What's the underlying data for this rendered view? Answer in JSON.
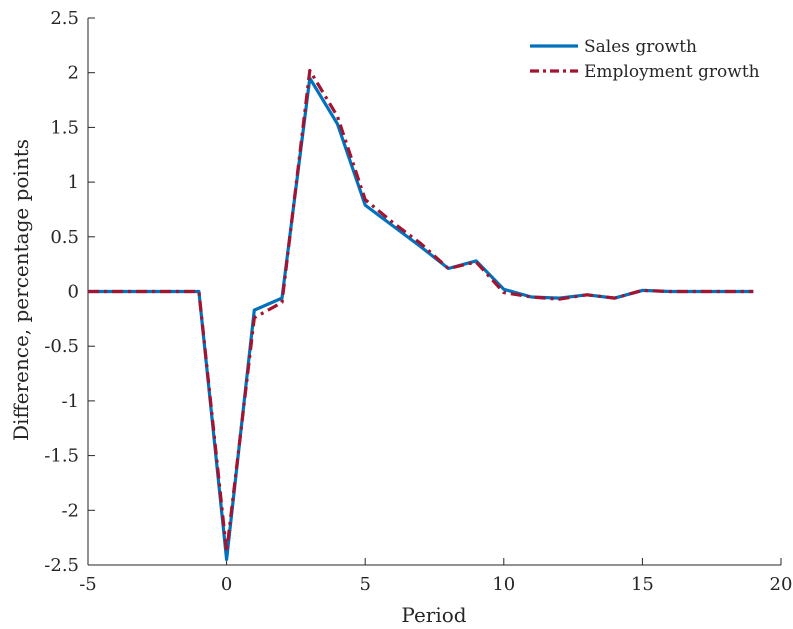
{
  "chart_data": {
    "type": "line",
    "title": "",
    "xlabel": "Period",
    "ylabel": "Difference, percentage points",
    "xlim": [
      -5,
      20
    ],
    "ylim": [
      -2.5,
      2.5
    ],
    "xticks": [
      -5,
      0,
      5,
      10,
      15,
      20
    ],
    "xtick_labels": [
      "-5",
      "0",
      "5",
      "10",
      "15",
      "20"
    ],
    "yticks": [
      2.5,
      2,
      1.5,
      1,
      0.5,
      0,
      -0.5,
      -1,
      -1.5,
      -2,
      -2.5
    ],
    "ytick_labels": [
      "2.5",
      "2",
      "1.5",
      "1",
      "0.5",
      "0",
      "-0.5",
      "-1",
      "-1.5",
      "-2",
      "-2.5"
    ],
    "grid": false,
    "legend_position": "top-right",
    "x": [
      -5,
      -4,
      -3,
      -2,
      -1,
      0,
      1,
      2,
      3,
      4,
      5,
      6,
      7,
      8,
      9,
      10,
      11,
      12,
      13,
      14,
      15,
      16,
      17,
      18,
      19
    ],
    "series": [
      {
        "name": "Sales growth",
        "color": "#0072BD",
        "style": "solid",
        "values": [
          0,
          0,
          0,
          0,
          0,
          -2.45,
          -0.17,
          -0.06,
          1.95,
          1.53,
          0.79,
          0.6,
          0.41,
          0.21,
          0.28,
          0.02,
          -0.05,
          -0.06,
          -0.03,
          -0.06,
          0.01,
          0,
          0,
          0,
          0
        ]
      },
      {
        "name": "Employment growth",
        "color": "#A2142F",
        "style": "dashdot",
        "values": [
          0,
          0,
          0,
          0,
          0,
          -2.38,
          -0.24,
          -0.1,
          2.02,
          1.6,
          0.84,
          0.63,
          0.44,
          0.21,
          0.27,
          -0.01,
          -0.05,
          -0.07,
          -0.03,
          -0.06,
          0.01,
          0,
          0,
          0,
          0
        ]
      }
    ]
  }
}
